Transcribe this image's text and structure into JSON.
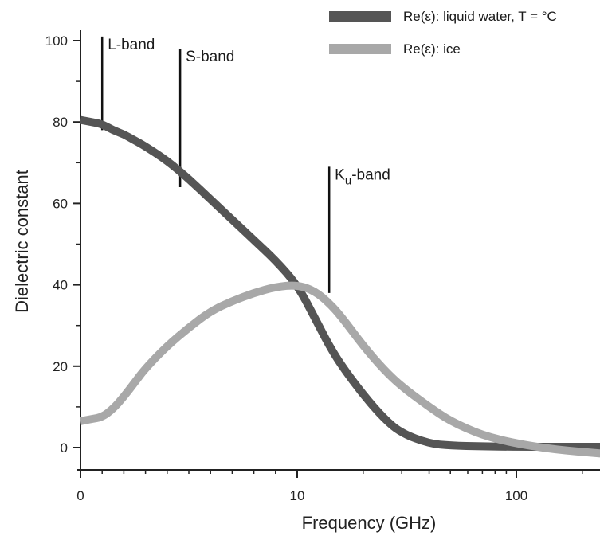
{
  "chart_data": {
    "type": "line",
    "xlabel": "Frequency (GHz)",
    "ylabel": "Dielectric constant",
    "x_scale": "linear-then-log",
    "xlim": [
      0,
      250
    ],
    "ylim": [
      0,
      100
    ],
    "x_ticks": [
      {
        "value": 0,
        "label": "0"
      },
      {
        "value": 10,
        "label": "10"
      },
      {
        "value": 100,
        "label": "100"
      }
    ],
    "y_ticks": [
      {
        "value": 0,
        "label": "0"
      },
      {
        "value": 20,
        "label": "20"
      },
      {
        "value": 40,
        "label": "40"
      },
      {
        "value": 60,
        "label": "60"
      },
      {
        "value": 80,
        "label": "80"
      },
      {
        "value": 100,
        "label": "100"
      }
    ],
    "grid": false,
    "legend_position": "top-right",
    "series": [
      {
        "name": "Re(ε): liquid water, T = °C",
        "color": "#555555",
        "x": [
          0,
          0.5,
          1,
          1.5,
          2,
          2.5,
          3,
          4,
          5,
          6,
          7,
          8,
          9,
          10,
          12,
          14,
          16,
          20,
          25,
          30,
          40,
          50,
          70,
          100,
          150,
          250
        ],
        "y": [
          80.5,
          80,
          79.5,
          78,
          77,
          75.5,
          74,
          70.5,
          66,
          61,
          56,
          51,
          46,
          40,
          32,
          25,
          20,
          13,
          7,
          3.5,
          1,
          0.5,
          0.3,
          0.2,
          0.2,
          0.2
        ]
      },
      {
        "name": "Re(ε): ice",
        "color": "#a8a8a8",
        "x": [
          0,
          0.5,
          1,
          1.5,
          2,
          2.5,
          3,
          4,
          5,
          6,
          7,
          8,
          9,
          10,
          12,
          14,
          16,
          20,
          25,
          30,
          40,
          50,
          70,
          100,
          150,
          250
        ],
        "y": [
          6.5,
          7,
          7.5,
          9.5,
          12.5,
          16,
          19.5,
          25,
          29.5,
          33.5,
          36,
          38,
          39.5,
          40,
          38.5,
          35.5,
          32,
          25,
          19,
          15,
          10,
          6.5,
          3,
          1,
          -0.5,
          -1.5
        ]
      }
    ],
    "annotations": [
      {
        "text": "L-band",
        "x": 1,
        "y_top": 101,
        "y_bottom": 78
      },
      {
        "text": "S-band",
        "x": 4.6,
        "y_top": 98,
        "y_bottom": 64
      },
      {
        "text": "Ku-band",
        "text_main": "K",
        "text_sub": "u",
        "text_tail": "-band",
        "x": 14,
        "y_top": 69,
        "y_bottom": 38
      }
    ]
  }
}
